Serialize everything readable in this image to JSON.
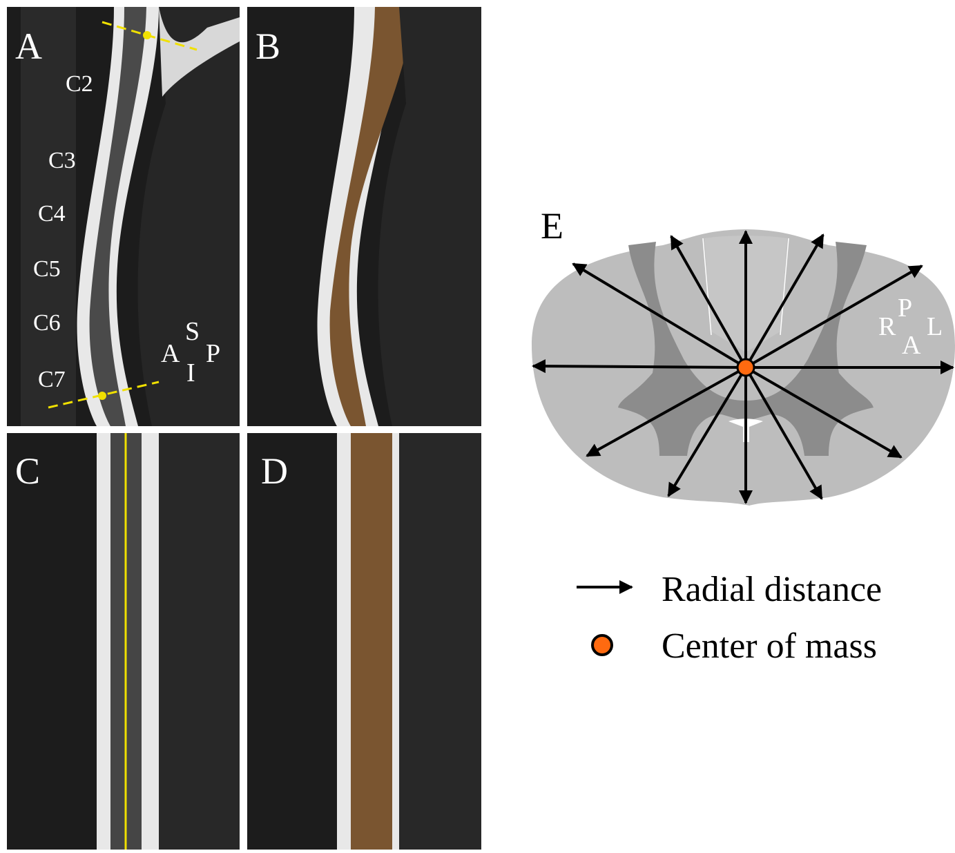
{
  "panels": [
    {
      "label": "A",
      "vertebrae": [
        "C2",
        "C3",
        "C4",
        "C5",
        "C6",
        "C7"
      ],
      "orientation": {
        "superior": "S",
        "anterior": "A",
        "inferior": "I",
        "posterior": "P"
      }
    },
    {
      "label": "B"
    },
    {
      "label": "C"
    },
    {
      "label": "D"
    },
    {
      "label": "E",
      "orientation": {
        "posterior": "P",
        "right": "R",
        "anterior": "A",
        "left": "L"
      }
    }
  ],
  "legend": [
    {
      "label": "Radial distance"
    },
    {
      "label": "Center of mass"
    }
  ]
}
